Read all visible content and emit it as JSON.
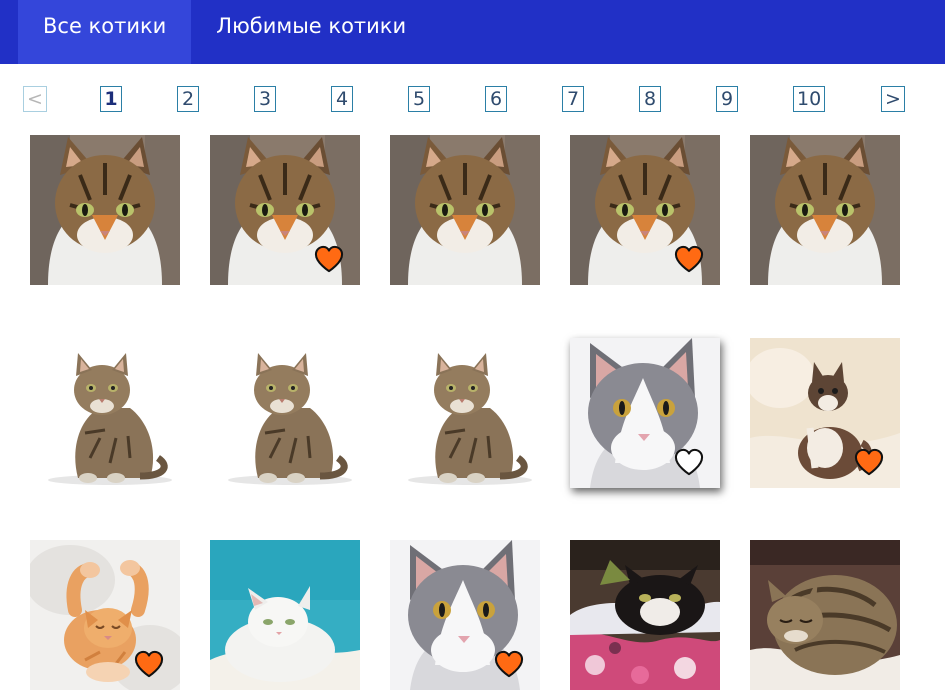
{
  "tabs": [
    {
      "label": "Все котики",
      "active": true
    },
    {
      "label": "Любимые котики",
      "active": false
    }
  ],
  "pagination": {
    "prev": "<",
    "next": ">",
    "pages": [
      "1",
      "2",
      "3",
      "4",
      "5",
      "6",
      "7",
      "8",
      "9",
      "10"
    ],
    "current": "1"
  },
  "colors": {
    "header": "#2130c6",
    "active_tab": "#3446da",
    "heart_filled": "#ff6a13",
    "heart_outline": "#ffffff"
  },
  "cats": [
    {
      "photo": "tabby-portrait-cat",
      "favorite": false,
      "heart_visible": false
    },
    {
      "photo": "tabby-portrait-cat",
      "favorite": true,
      "heart_visible": true
    },
    {
      "photo": "tabby-portrait-cat",
      "favorite": false,
      "heart_visible": false
    },
    {
      "photo": "tabby-portrait-cat",
      "favorite": true,
      "heart_visible": true
    },
    {
      "photo": "tabby-portrait-cat",
      "favorite": false,
      "heart_visible": false
    },
    {
      "photo": "sitting-tabby-cat",
      "favorite": false,
      "heart_visible": false
    },
    {
      "photo": "sitting-tabby-cat",
      "favorite": false,
      "heart_visible": false
    },
    {
      "photo": "sitting-tabby-cat",
      "favorite": false,
      "heart_visible": false
    },
    {
      "photo": "grey-white-cat",
      "favorite": false,
      "heart_visible": true,
      "hovered": true
    },
    {
      "photo": "kitten-on-blanket",
      "favorite": true,
      "heart_visible": true
    },
    {
      "photo": "ginger-kitten-on-back",
      "favorite": true,
      "heart_visible": true
    },
    {
      "photo": "white-cat-on-blue",
      "favorite": false,
      "heart_visible": false
    },
    {
      "photo": "grey-white-cat",
      "favorite": true,
      "heart_visible": true
    },
    {
      "photo": "black-white-cat-on-blanket",
      "favorite": false,
      "heart_visible": false
    },
    {
      "photo": "sleeping-tabby-cat",
      "favorite": false,
      "heart_visible": false
    }
  ]
}
